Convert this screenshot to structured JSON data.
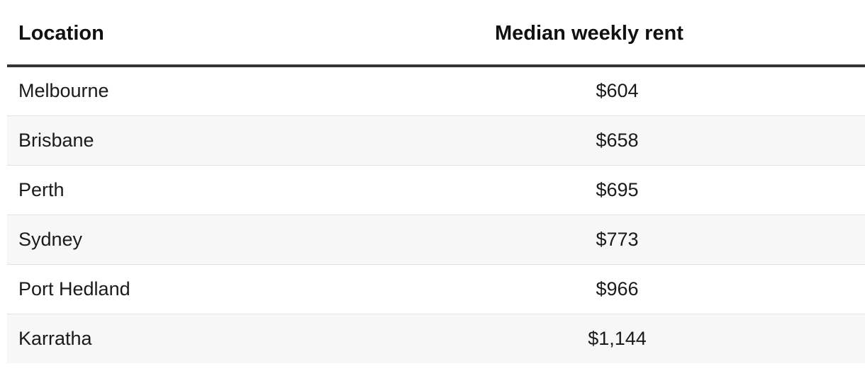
{
  "table": {
    "headers": {
      "location": "Location",
      "rent": "Median weekly rent"
    },
    "rows": [
      {
        "location": "Melbourne",
        "rent": "$604"
      },
      {
        "location": "Brisbane",
        "rent": "$658"
      },
      {
        "location": "Perth",
        "rent": "$695"
      },
      {
        "location": "Sydney",
        "rent": "$773"
      },
      {
        "location": "Port Hedland",
        "rent": "$966"
      },
      {
        "location": "Karratha",
        "rent": "$1,144"
      }
    ]
  },
  "colors": {
    "header_rule": "#333333",
    "row_divider": "#e2e2e2",
    "striped_row": "#f7f7f7"
  }
}
